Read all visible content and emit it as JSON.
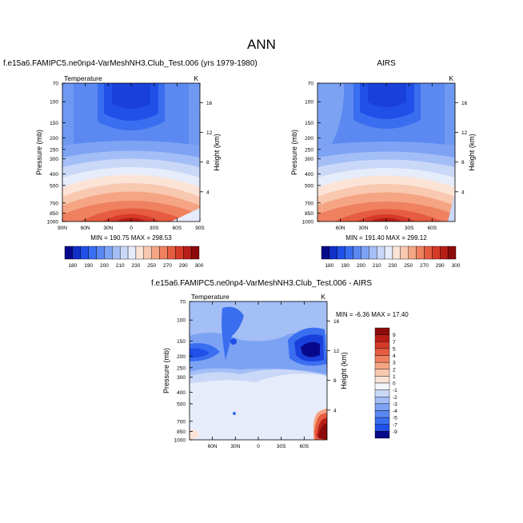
{
  "figure": {
    "title": "ANN"
  },
  "chart_data": [
    {
      "type": "heatmap",
      "title": "f.e15a6.FAMIPC5.ne0np4-VarMeshNH3.Club_Test.006 (yrs 1979-1980)",
      "field_label": "Temperature",
      "units": "K",
      "ylabel": "Pressure (mb)",
      "ylabel_right": "Height (km)",
      "x_ticks": [
        "90N",
        "60N",
        "30N",
        "0",
        "30S",
        "60S",
        "90S"
      ],
      "y_ticks": [
        "70",
        "100",
        "150",
        "200",
        "250",
        "300",
        "400",
        "500",
        "700",
        "850",
        "1000"
      ],
      "right_ticks": [
        "16",
        "12",
        "8",
        "4"
      ],
      "ylim": [
        1000,
        70
      ],
      "stats": "MIN = 190.75  MAX = 298.53",
      "min": 190.75,
      "max": 298.53
    },
    {
      "type": "heatmap",
      "title": "AIRS",
      "units": "K",
      "ylabel": "Pressure (mb)",
      "ylabel_right": "Height (km)",
      "x_ticks": [
        "60N",
        "30N",
        "0",
        "30S",
        "60S"
      ],
      "y_ticks": [
        "70",
        "100",
        "150",
        "200",
        "250",
        "300",
        "400",
        "500",
        "700",
        "850",
        "1000"
      ],
      "right_ticks": [
        "16",
        "12",
        "8",
        "4"
      ],
      "ylim": [
        1000,
        70
      ],
      "stats": "MIN = 191.40  MAX = 299.12",
      "min": 191.4,
      "max": 299.12
    },
    {
      "type": "heatmap",
      "title": "f.e15a6.FAMIPC5.ne0np4-VarMeshNH3.Club_Test.006 - AIRS",
      "field_label": "Temperature",
      "units": "K",
      "ylabel": "Pressure (mb)",
      "ylabel_right": "Height (km)",
      "x_ticks": [
        "60N",
        "30N",
        "0",
        "30S",
        "60S"
      ],
      "y_ticks": [
        "70",
        "100",
        "150",
        "200",
        "250",
        "300",
        "400",
        "500",
        "700",
        "850",
        "1000"
      ],
      "right_ticks": [
        "16",
        "12",
        "8",
        "4"
      ],
      "ylim": [
        1000,
        70
      ],
      "stats": "MIN = -6.36  MAX = 17.40",
      "min": -6.36,
      "max": 17.4
    }
  ],
  "colorbar_abs": {
    "labels": [
      "180",
      "190",
      "200",
      "210",
      "230",
      "250",
      "270",
      "290",
      "300"
    ],
    "colors": [
      "#08088a",
      "#1030c8",
      "#2050e8",
      "#3a6ef0",
      "#5a88f2",
      "#7ca2f4",
      "#a4bef6",
      "#cad8f8",
      "#e6ecfa",
      "#fbe3d6",
      "#f9c8b0",
      "#f5a584",
      "#ef8160",
      "#e65c40",
      "#d63a28",
      "#b81e18",
      "#8c0a0a"
    ]
  },
  "colorbar_diff": {
    "labels": [
      "9",
      "7",
      "5",
      "4",
      "3",
      "2",
      "1",
      "0",
      "-1",
      "-2",
      "-3",
      "-4",
      "-5",
      "-7",
      "-9"
    ],
    "colors": [
      "#8c0a0a",
      "#b81e18",
      "#d63a28",
      "#e65c40",
      "#ef8160",
      "#f5a584",
      "#f9c8b0",
      "#fbe3d6",
      "#f2f5fc",
      "#cad8f8",
      "#a4bef6",
      "#7ca2f4",
      "#5a88f2",
      "#3a6ef0",
      "#2050e8",
      "#08088a"
    ]
  }
}
